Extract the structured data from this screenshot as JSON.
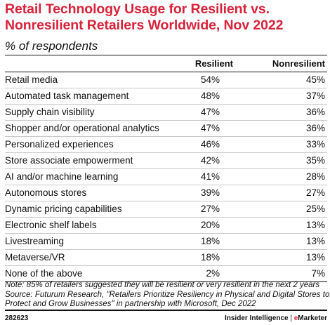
{
  "title_lines": [
    "Retail Technology Usage for Resilient vs.",
    "Nonresilient Retailers Worldwide, Nov 2022"
  ],
  "subtitle": "% of respondents",
  "note_lines": [
    "Note: 85% of retailers suggested they will be resilient or very resilient in the next 2 years",
    "Source: Futurum Research, \"Retailers Prioritize Resiliency in Physical and Digital Stores to",
    "Protect and Grow Businesses\" in partnership with Microsoft, Dec 2022"
  ],
  "footer": {
    "id": "282623",
    "brand_left": "Insider Intelligence",
    "brand_sep": " | ",
    "brand_e": "e",
    "brand_right": "Marketer"
  },
  "chart_data": {
    "type": "table",
    "columns": [
      "Resilient",
      "Nonresilient"
    ],
    "rows": [
      {
        "label": "Retail media",
        "values": [
          "54%",
          "45%"
        ]
      },
      {
        "label": "Automated task management",
        "values": [
          "48%",
          "37%"
        ]
      },
      {
        "label": "Supply chain visibility",
        "values": [
          "47%",
          "36%"
        ]
      },
      {
        "label": "Shopper and/or operational analytics",
        "values": [
          "47%",
          "36%"
        ]
      },
      {
        "label": "Personalized experiences",
        "values": [
          "46%",
          "33%"
        ]
      },
      {
        "label": "Store associate empowerment",
        "values": [
          "42%",
          "35%"
        ]
      },
      {
        "label": "AI and/or machine learning",
        "values": [
          "41%",
          "28%"
        ]
      },
      {
        "label": "Autonomous stores",
        "values": [
          "39%",
          "27%"
        ]
      },
      {
        "label": "Dynamic pricing capabilities",
        "values": [
          "27%",
          "25%"
        ]
      },
      {
        "label": "Electronic shelf labels",
        "values": [
          "20%",
          "13%"
        ]
      },
      {
        "label": "Livestreaming",
        "values": [
          "18%",
          "13%"
        ]
      },
      {
        "label": "Metaverse/VR",
        "values": [
          "18%",
          "13%"
        ]
      },
      {
        "label": "None of the above",
        "values": [
          "2%",
          "7%"
        ]
      }
    ]
  }
}
